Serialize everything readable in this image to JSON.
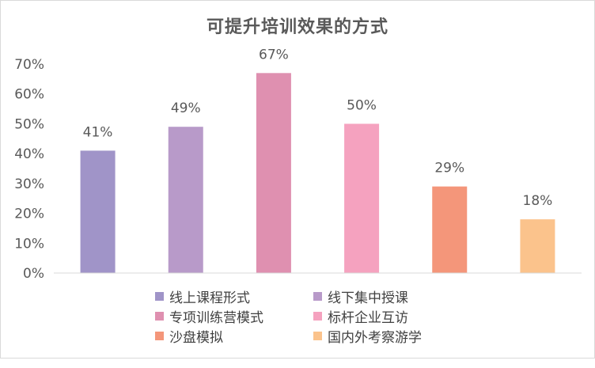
{
  "chart_data": {
    "type": "bar",
    "title": "可提升培训效果的方式",
    "xlabel": "",
    "ylabel": "",
    "ylim": [
      0,
      70
    ],
    "yticks": [
      "0%",
      "10%",
      "20%",
      "30%",
      "40%",
      "50%",
      "60%",
      "70%"
    ],
    "grid": false,
    "legend_position": "bottom",
    "categories": [
      "线上课程形式",
      "线下集中授课",
      "专项训练营模式",
      "标杆企业互访",
      "沙盘模拟",
      "国内外考察游学"
    ],
    "values": [
      41,
      49,
      67,
      50,
      29,
      18
    ],
    "data_labels": [
      "41%",
      "49%",
      "67%",
      "50%",
      "29%",
      "18%"
    ],
    "colors": [
      "#a094c8",
      "#b89ac9",
      "#df90b0",
      "#f5a2bf",
      "#f4967a",
      "#fbc38c"
    ]
  }
}
